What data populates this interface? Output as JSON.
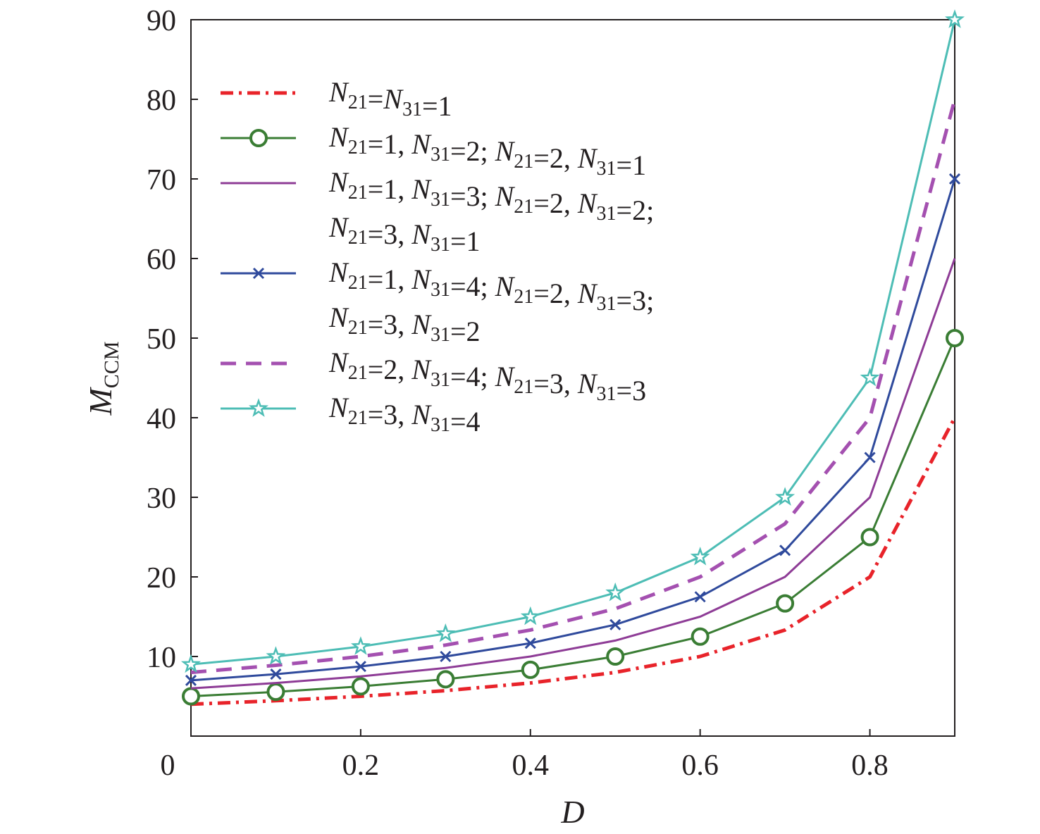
{
  "chart_data": {
    "type": "line",
    "title": "",
    "xlabel": "D",
    "ylabel": "M",
    "ylabel_sub": "CCM",
    "xlim": [
      0,
      0.9
    ],
    "ylim": [
      0,
      90
    ],
    "x_ticks": [
      0,
      0.2,
      0.4,
      0.6,
      0.8
    ],
    "x_tick_labels": [
      "0",
      "0.2",
      "0.4",
      "0.6",
      "0.8"
    ],
    "y_ticks": [
      10,
      20,
      30,
      40,
      50,
      60,
      70,
      80,
      90
    ],
    "y_tick_labels": [
      "10",
      "20",
      "30",
      "40",
      "50",
      "60",
      "70",
      "80",
      "90"
    ],
    "grid": false,
    "legend_position": "top-left",
    "x": [
      0,
      0.1,
      0.2,
      0.3,
      0.4,
      0.5,
      0.6,
      0.7,
      0.8,
      0.9
    ],
    "series": [
      {
        "name": "N21=N31=1",
        "label_lines": [
          "N21=N31=1"
        ],
        "color": "#e8232a",
        "style": "dashdot",
        "marker": "none",
        "values": [
          4,
          4.44,
          5,
          5.71,
          6.67,
          8,
          10,
          13.33,
          20,
          40
        ]
      },
      {
        "name": "N21=1, N31=2; N21=2, N31=1",
        "label_lines": [
          "N21=1, N31=2; N21=2, N31=1"
        ],
        "color": "#3a7d34",
        "style": "solid",
        "marker": "circle",
        "values": [
          5,
          5.56,
          6.25,
          7.14,
          8.33,
          10,
          12.5,
          16.67,
          25,
          50
        ]
      },
      {
        "name": "N21=1, N31=3; N21=2, N31=2; N21=3, N31=1",
        "label_lines": [
          "N21=1, N31=3; N21=2, N31=2;",
          "N21=3, N31=1"
        ],
        "color": "#8e3c96",
        "style": "solid",
        "marker": "none",
        "values": [
          6,
          6.67,
          7.5,
          8.57,
          10,
          12,
          15,
          20,
          30,
          60
        ]
      },
      {
        "name": "N21=1, N31=4; N21=2, N31=3; N21=3, N31=2",
        "label_lines": [
          "N21=1, N31=4; N21=2, N31=3;",
          "N21=3, N31=2"
        ],
        "color": "#2f4a9c",
        "style": "solid",
        "marker": "x",
        "values": [
          7,
          7.78,
          8.75,
          10,
          11.67,
          14,
          17.5,
          23.33,
          35,
          70
        ]
      },
      {
        "name": "N21=2, N31=4; N21=3, N31=3",
        "label_lines": [
          "N21=2, N31=4; N21=3, N31=3"
        ],
        "color": "#a450b0",
        "style": "dashed",
        "marker": "none",
        "values": [
          8,
          8.89,
          10,
          11.43,
          13.33,
          16,
          20,
          26.67,
          40,
          80
        ]
      },
      {
        "name": "N21=3, N31=4",
        "label_lines": [
          "N21=3, N31=4"
        ],
        "color": "#4dbdb5",
        "style": "solid",
        "marker": "star",
        "values": [
          9,
          10,
          11.25,
          12.86,
          15,
          18,
          22.5,
          30,
          45,
          90
        ]
      }
    ]
  }
}
